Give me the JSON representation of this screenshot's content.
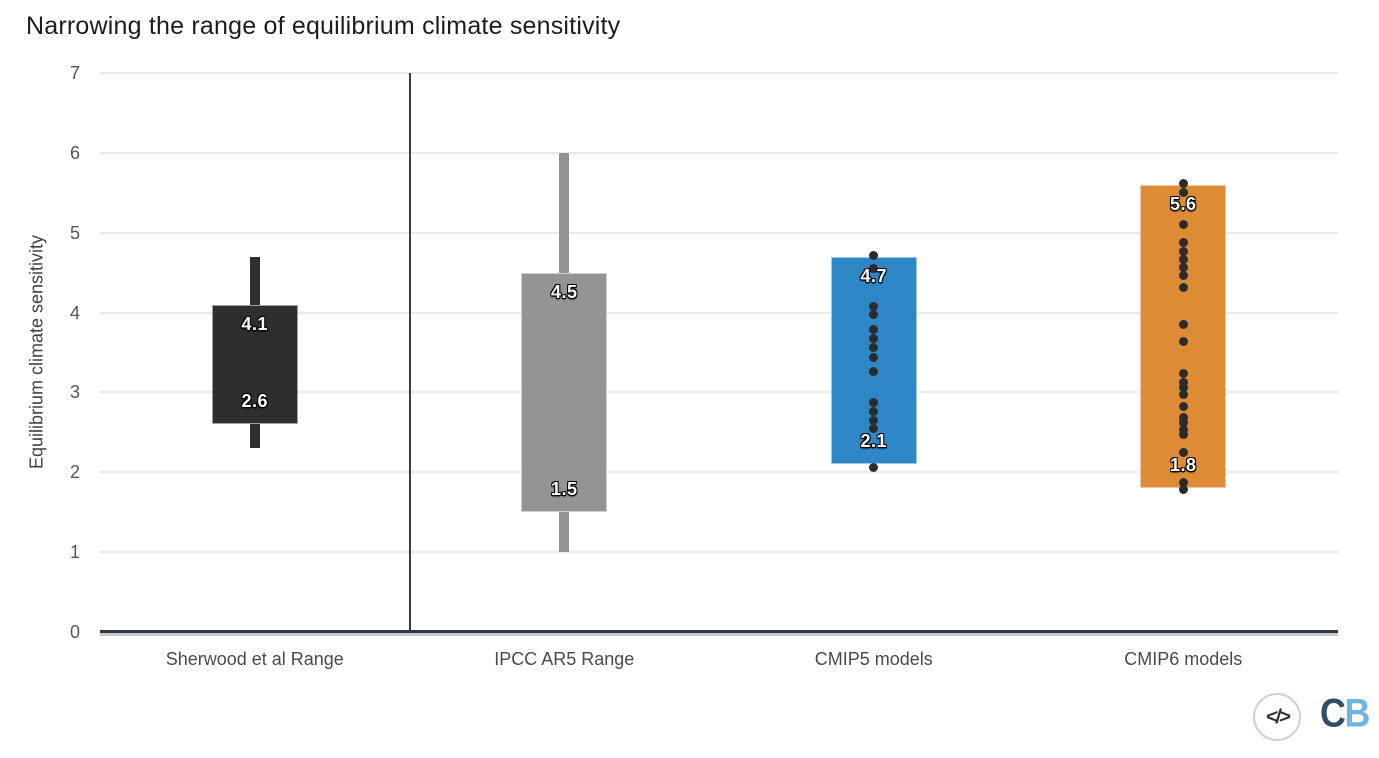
{
  "title": "Narrowing the range of equilibrium climate sensitivity",
  "chart_data": {
    "type": "box",
    "title": "Narrowing the range of equilibrium climate sensitivity",
    "ylabel": "Equilibrium climate sensitivity",
    "xlabel": "",
    "ylim": [
      0,
      7
    ],
    "yticks": [
      0,
      1,
      2,
      3,
      4,
      5,
      6,
      7
    ],
    "grid": true,
    "legend": "none",
    "categories": [
      "Sherwood et al Range",
      "IPCC AR5 Range",
      "CMIP5 models",
      "CMIP6 models"
    ],
    "divider_after_category_index": 0,
    "series": [
      {
        "name": "Sherwood et al Range",
        "box_low": 2.6,
        "box_high": 4.1,
        "whisker_low": 2.3,
        "whisker_high": 4.7,
        "label_high": "4.1",
        "label_low": "2.6",
        "color": "#2e2e2e",
        "points": []
      },
      {
        "name": "IPCC AR5 Range",
        "box_low": 1.5,
        "box_high": 4.5,
        "whisker_low": 1.0,
        "whisker_high": 6.0,
        "label_high": "4.5",
        "label_low": "1.5",
        "color": "#949494",
        "points": []
      },
      {
        "name": "CMIP5 models",
        "box_low": 2.1,
        "box_high": 4.7,
        "whisker_low": null,
        "whisker_high": null,
        "label_high": "4.7",
        "label_low": "2.1",
        "color": "#2d86c6",
        "points": [
          4.72,
          4.55,
          4.08,
          3.97,
          3.79,
          3.67,
          3.56,
          3.44,
          3.26,
          2.88,
          2.76,
          2.65,
          2.55,
          2.06
        ]
      },
      {
        "name": "CMIP6 models",
        "box_low": 1.8,
        "box_high": 5.6,
        "whisker_low": null,
        "whisker_high": null,
        "label_high": "5.6",
        "label_low": "1.8",
        "color": "#de8b35",
        "points": [
          5.62,
          5.5,
          5.1,
          4.88,
          4.76,
          4.66,
          4.57,
          4.47,
          4.31,
          3.85,
          3.64,
          3.24,
          3.13,
          3.06,
          2.97,
          2.82,
          2.69,
          2.62,
          2.53,
          2.47,
          2.25,
          1.87,
          1.79
        ]
      }
    ]
  },
  "colors": {
    "title_text": "#1d1d1d",
    "axis_label_text": "#414141",
    "tick_text": "#565656",
    "category_text": "#4a4a4a",
    "grid": "#e9e9e9",
    "divider": "#3d3d3d",
    "axis_line": "#383838",
    "axis_underline": "#c0cad9",
    "dot": "#2b2b2b",
    "sherwood_box": "#2e2e2e",
    "ipcc_box": "#949494",
    "cmip5_box": "#2d86c6",
    "cmip6_box": "#de8b35",
    "logo_ring": "#d9ccca",
    "logo_glyph": "#333333",
    "logo_c": "#2e4f63",
    "logo_b": "#70b5e2"
  },
  "footer": {
    "code_glyph": "</>",
    "logo_c": "C",
    "logo_b": "B"
  }
}
